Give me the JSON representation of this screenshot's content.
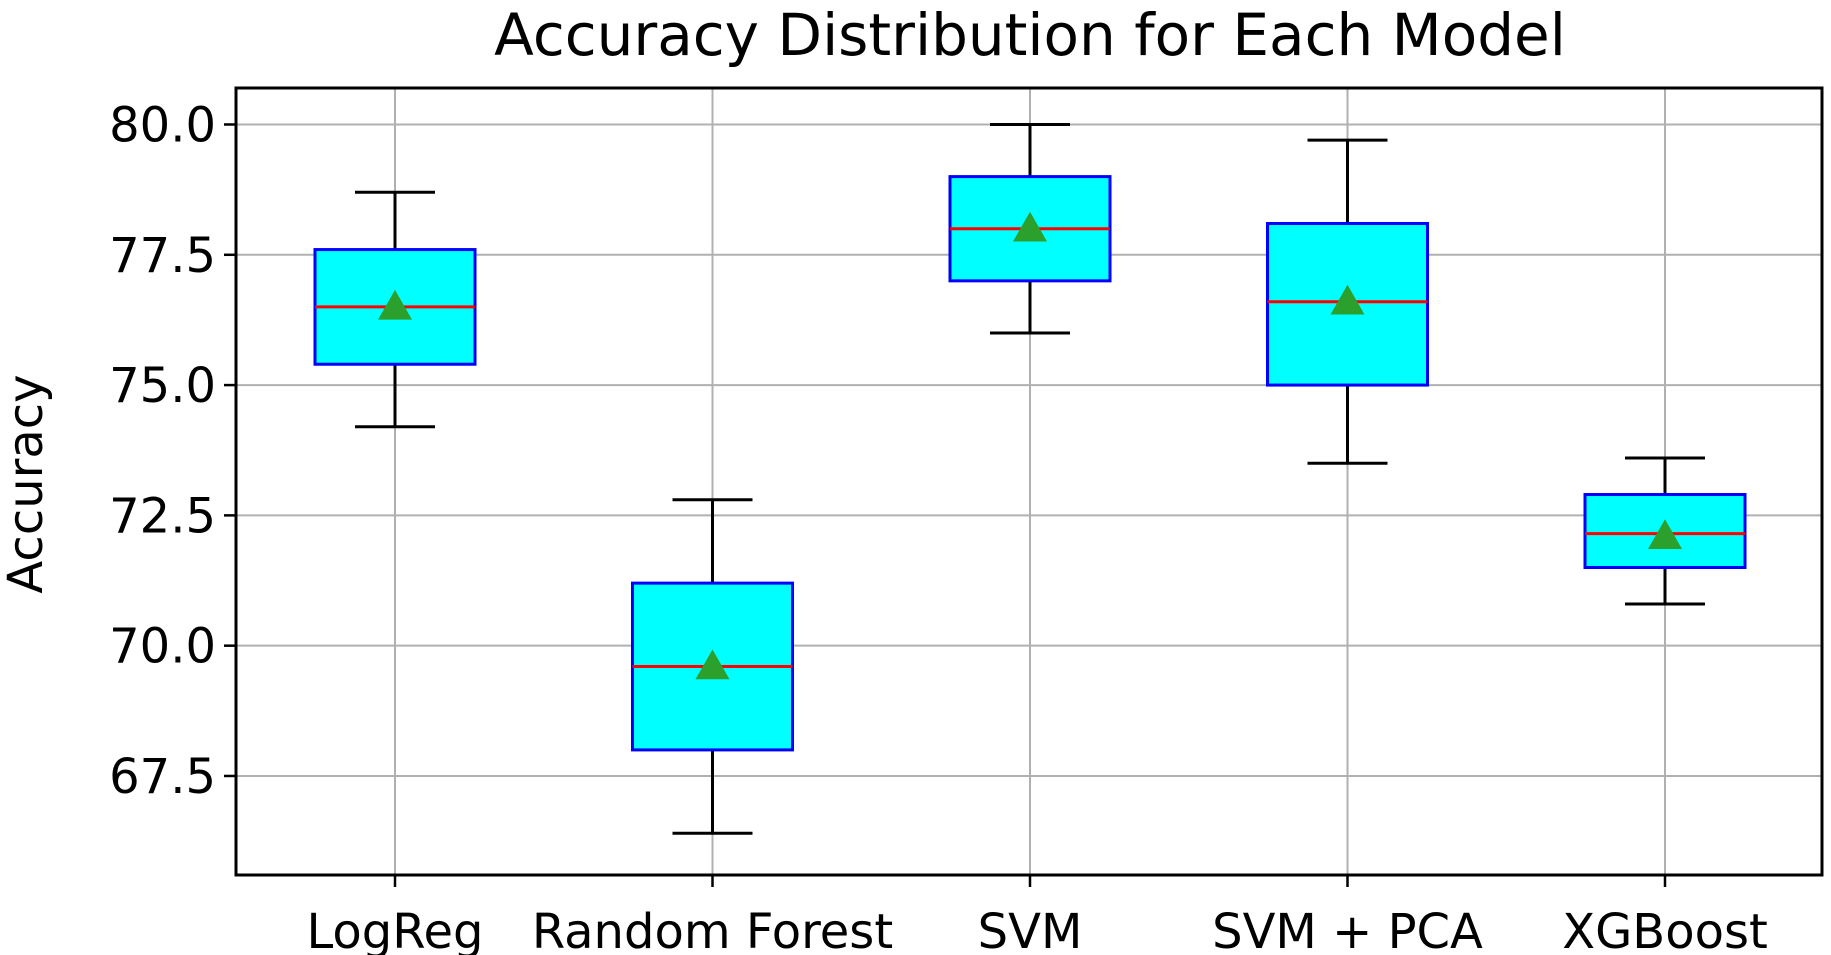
{
  "chart_data": {
    "type": "box",
    "title": "Accuracy Distribution for Each Model",
    "xlabel": "",
    "ylabel": "Accuracy",
    "categories": [
      "LogReg",
      "Random Forest",
      "SVM",
      "SVM + PCA",
      "XGBoost"
    ],
    "y_ticks": [
      "67.5",
      "70.0",
      "72.5",
      "75.0",
      "77.5",
      "80.0"
    ],
    "ylim": [
      65.6,
      80.7
    ],
    "grid": true,
    "boxes": [
      {
        "category": "LogReg",
        "whisker_low": 74.2,
        "q1": 75.4,
        "median": 76.5,
        "q3": 77.6,
        "whisker_high": 78.7,
        "mean": 76.5
      },
      {
        "category": "Random Forest",
        "whisker_low": 66.4,
        "q1": 68.0,
        "median": 69.6,
        "q3": 71.2,
        "whisker_high": 72.8,
        "mean": 69.6
      },
      {
        "category": "SVM",
        "whisker_low": 76.0,
        "q1": 77.0,
        "median": 78.0,
        "q3": 79.0,
        "whisker_high": 80.0,
        "mean": 78.0
      },
      {
        "category": "SVM + PCA",
        "whisker_low": 73.5,
        "q1": 75.0,
        "median": 76.6,
        "q3": 78.1,
        "whisker_high": 79.7,
        "mean": 76.6
      },
      {
        "category": "XGBoost",
        "whisker_low": 70.8,
        "q1": 71.5,
        "median": 72.15,
        "q3": 72.9,
        "whisker_high": 73.6,
        "mean": 72.1
      }
    ],
    "colors": {
      "box_fill": "#00ffff",
      "box_edge": "#0000ff",
      "median": "#ff0000",
      "mean_marker": "#2ca02c",
      "whisker": "#000000",
      "grid": "#b0b0b0"
    }
  }
}
